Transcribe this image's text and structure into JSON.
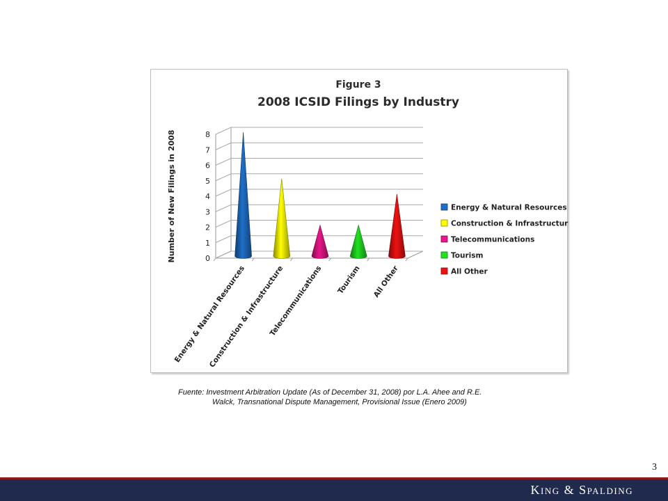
{
  "slide": {
    "source_line1": "Fuente:  Investment Arbitration Update (As of December 31, 2008) por L.A. Ahee and R.E.",
    "source_line2": "Walck, Transnational Dispute Management, Provisional Issue (Enero 2009)",
    "page_number": "3",
    "brand": "King & Spalding",
    "colors": {
      "footer_bar": "#1f2a4d",
      "footer_line": "#8b1a1a"
    }
  },
  "chart_data": {
    "type": "bar",
    "style": "3d-cone",
    "title": "2008 ICSID Filings by Industry",
    "subtitle": "Figure 3",
    "xlabel": "",
    "ylabel": "Number of New Filings in 2008",
    "ylim": [
      0,
      8
    ],
    "yticks": [
      0,
      1,
      2,
      3,
      4,
      5,
      6,
      7,
      8
    ],
    "grid": true,
    "legend_position": "right",
    "categories": [
      "Energy & Natural Resources",
      "Construction & Infrastructure",
      "Telecommunications",
      "Tourism",
      "All Other"
    ],
    "values": [
      8,
      5,
      2,
      2,
      4
    ],
    "colors": [
      "#1f6fc8",
      "#ffff00",
      "#e8168a",
      "#22e022",
      "#ee1111"
    ]
  }
}
